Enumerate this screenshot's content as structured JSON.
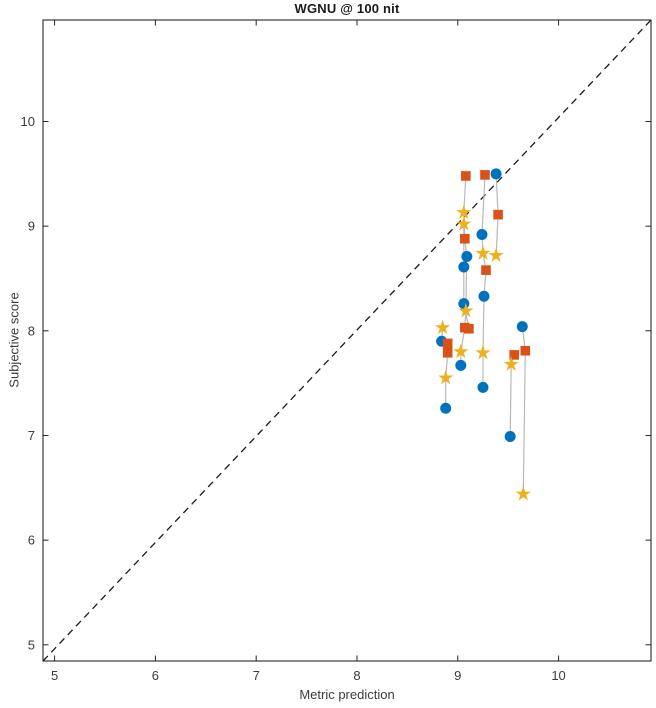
{
  "title": "WGNU @ 100 nit",
  "chart_data": {
    "type": "scatter",
    "title": "WGNU @ 100 nit",
    "xlabel": "Metric prediction",
    "ylabel": "Subjective score",
    "xlim": [
      4.885,
      10.917
    ],
    "ylim": [
      4.845,
      10.97
    ],
    "xticks": [
      5,
      6,
      7,
      8,
      9,
      10
    ],
    "yticks": [
      5,
      6,
      7,
      8,
      9,
      10
    ],
    "grid": false,
    "legend": "none",
    "box": true,
    "identity_line": {
      "style": "dashed",
      "color": "#1a1a1a",
      "comment": "y = x reference line from bottom-left to top-right corner"
    },
    "series": [
      {
        "name": "circle-series",
        "marker": "circle",
        "color": "#0072BD",
        "points": [
          [
            9.09,
            8.71
          ],
          [
            9.06,
            8.61
          ],
          [
            9.06,
            8.26
          ],
          [
            9.03,
            7.67
          ],
          [
            9.24,
            8.92
          ],
          [
            9.26,
            8.33
          ],
          [
            9.25,
            7.46
          ],
          [
            9.38,
            9.5
          ],
          [
            8.84,
            7.9
          ],
          [
            8.88,
            7.26
          ],
          [
            9.52,
            6.99
          ],
          [
            9.64,
            8.04
          ]
        ]
      },
      {
        "name": "square-series",
        "marker": "square",
        "color": "#D95319",
        "points": [
          [
            9.08,
            9.48
          ],
          [
            9.07,
            8.88
          ],
          [
            9.07,
            8.03
          ],
          [
            9.11,
            8.02
          ],
          [
            9.27,
            9.49
          ],
          [
            9.28,
            8.58
          ],
          [
            9.4,
            9.11
          ],
          [
            8.9,
            7.88
          ],
          [
            8.9,
            7.79
          ],
          [
            9.56,
            7.77
          ],
          [
            9.67,
            7.81
          ]
        ]
      },
      {
        "name": "star-series",
        "marker": "star",
        "color": "#EDB120",
        "points": [
          [
            9.06,
            9.13
          ],
          [
            9.06,
            9.02
          ],
          [
            9.08,
            8.19
          ],
          [
            9.03,
            7.8
          ],
          [
            9.25,
            8.74
          ],
          [
            9.25,
            7.79
          ],
          [
            9.38,
            8.72
          ],
          [
            8.85,
            8.03
          ],
          [
            8.88,
            7.55
          ],
          [
            9.53,
            7.68
          ],
          [
            9.65,
            6.44
          ]
        ]
      }
    ],
    "connector_lines": {
      "color": "#b9b9b9",
      "chains": [
        [
          [
            9.08,
            9.48
          ],
          [
            9.06,
            9.13
          ],
          [
            9.07,
            8.88
          ],
          [
            9.09,
            8.71
          ],
          [
            9.08,
            8.19
          ],
          [
            9.07,
            8.03
          ],
          [
            9.03,
            7.8
          ],
          [
            9.03,
            7.67
          ]
        ],
        [
          [
            9.06,
            9.02
          ],
          [
            9.06,
            8.61
          ],
          [
            9.06,
            8.26
          ],
          [
            9.11,
            8.02
          ]
        ],
        [
          [
            9.27,
            9.49
          ],
          [
            9.24,
            8.92
          ],
          [
            9.25,
            8.74
          ],
          [
            9.28,
            8.58
          ],
          [
            9.26,
            8.33
          ],
          [
            9.25,
            7.79
          ],
          [
            9.25,
            7.46
          ]
        ],
        [
          [
            9.38,
            9.5
          ],
          [
            9.4,
            9.11
          ],
          [
            9.38,
            8.72
          ]
        ],
        [
          [
            8.85,
            8.03
          ],
          [
            8.84,
            7.9
          ],
          [
            8.9,
            7.88
          ],
          [
            8.9,
            7.79
          ],
          [
            8.88,
            7.55
          ],
          [
            8.88,
            7.26
          ]
        ],
        [
          [
            9.56,
            7.77
          ],
          [
            9.53,
            7.68
          ],
          [
            9.52,
            6.99
          ]
        ],
        [
          [
            9.64,
            8.04
          ],
          [
            9.67,
            7.81
          ],
          [
            9.65,
            6.44
          ]
        ]
      ]
    }
  }
}
